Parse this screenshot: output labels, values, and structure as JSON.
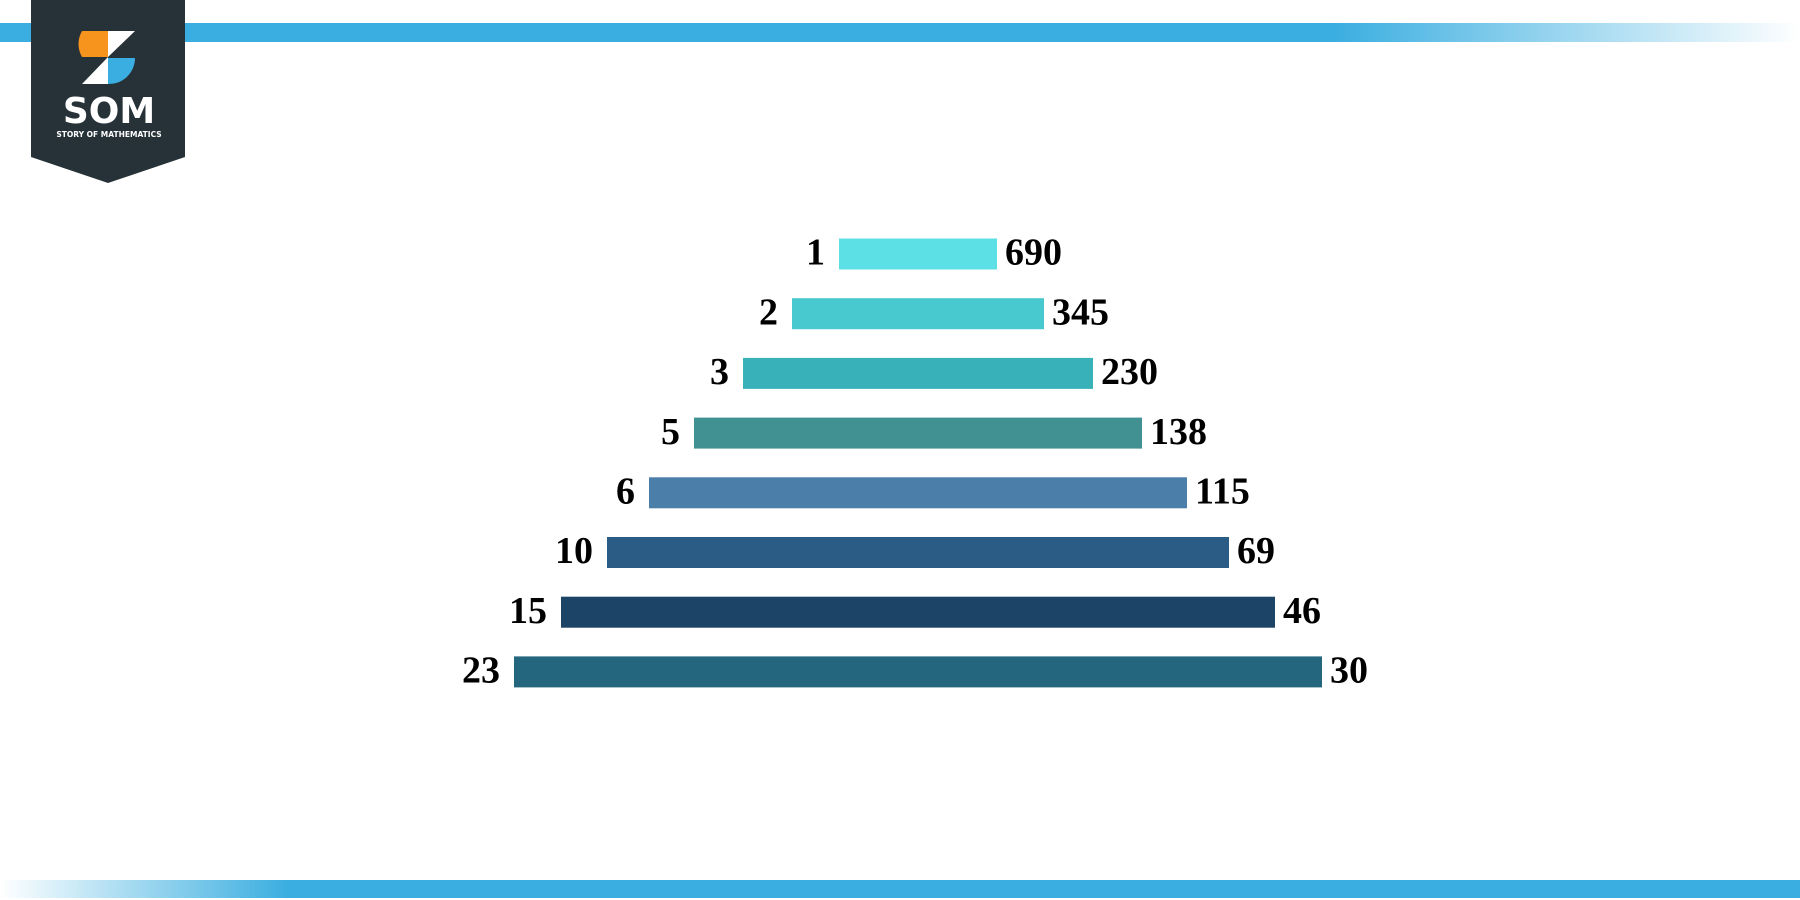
{
  "logo": {
    "mark": "SOM",
    "tagline": "STORY OF MATHEMATICS"
  },
  "pairs": [
    {
      "left": "1",
      "right": "690",
      "color": "#5ce0e6"
    },
    {
      "left": "2",
      "right": "345",
      "color": "#48c8cf"
    },
    {
      "left": "3",
      "right": "230",
      "color": "#38b2b8"
    },
    {
      "left": "5",
      "right": "138",
      "color": "#429192"
    },
    {
      "left": "6",
      "right": "115",
      "color": "#4b7ea8"
    },
    {
      "left": "10",
      "right": "69",
      "color": "#2a5c85"
    },
    {
      "left": "15",
      "right": "46",
      "color": "#1c4466"
    },
    {
      "left": "23",
      "right": "30",
      "color": "#25667f"
    }
  ]
}
